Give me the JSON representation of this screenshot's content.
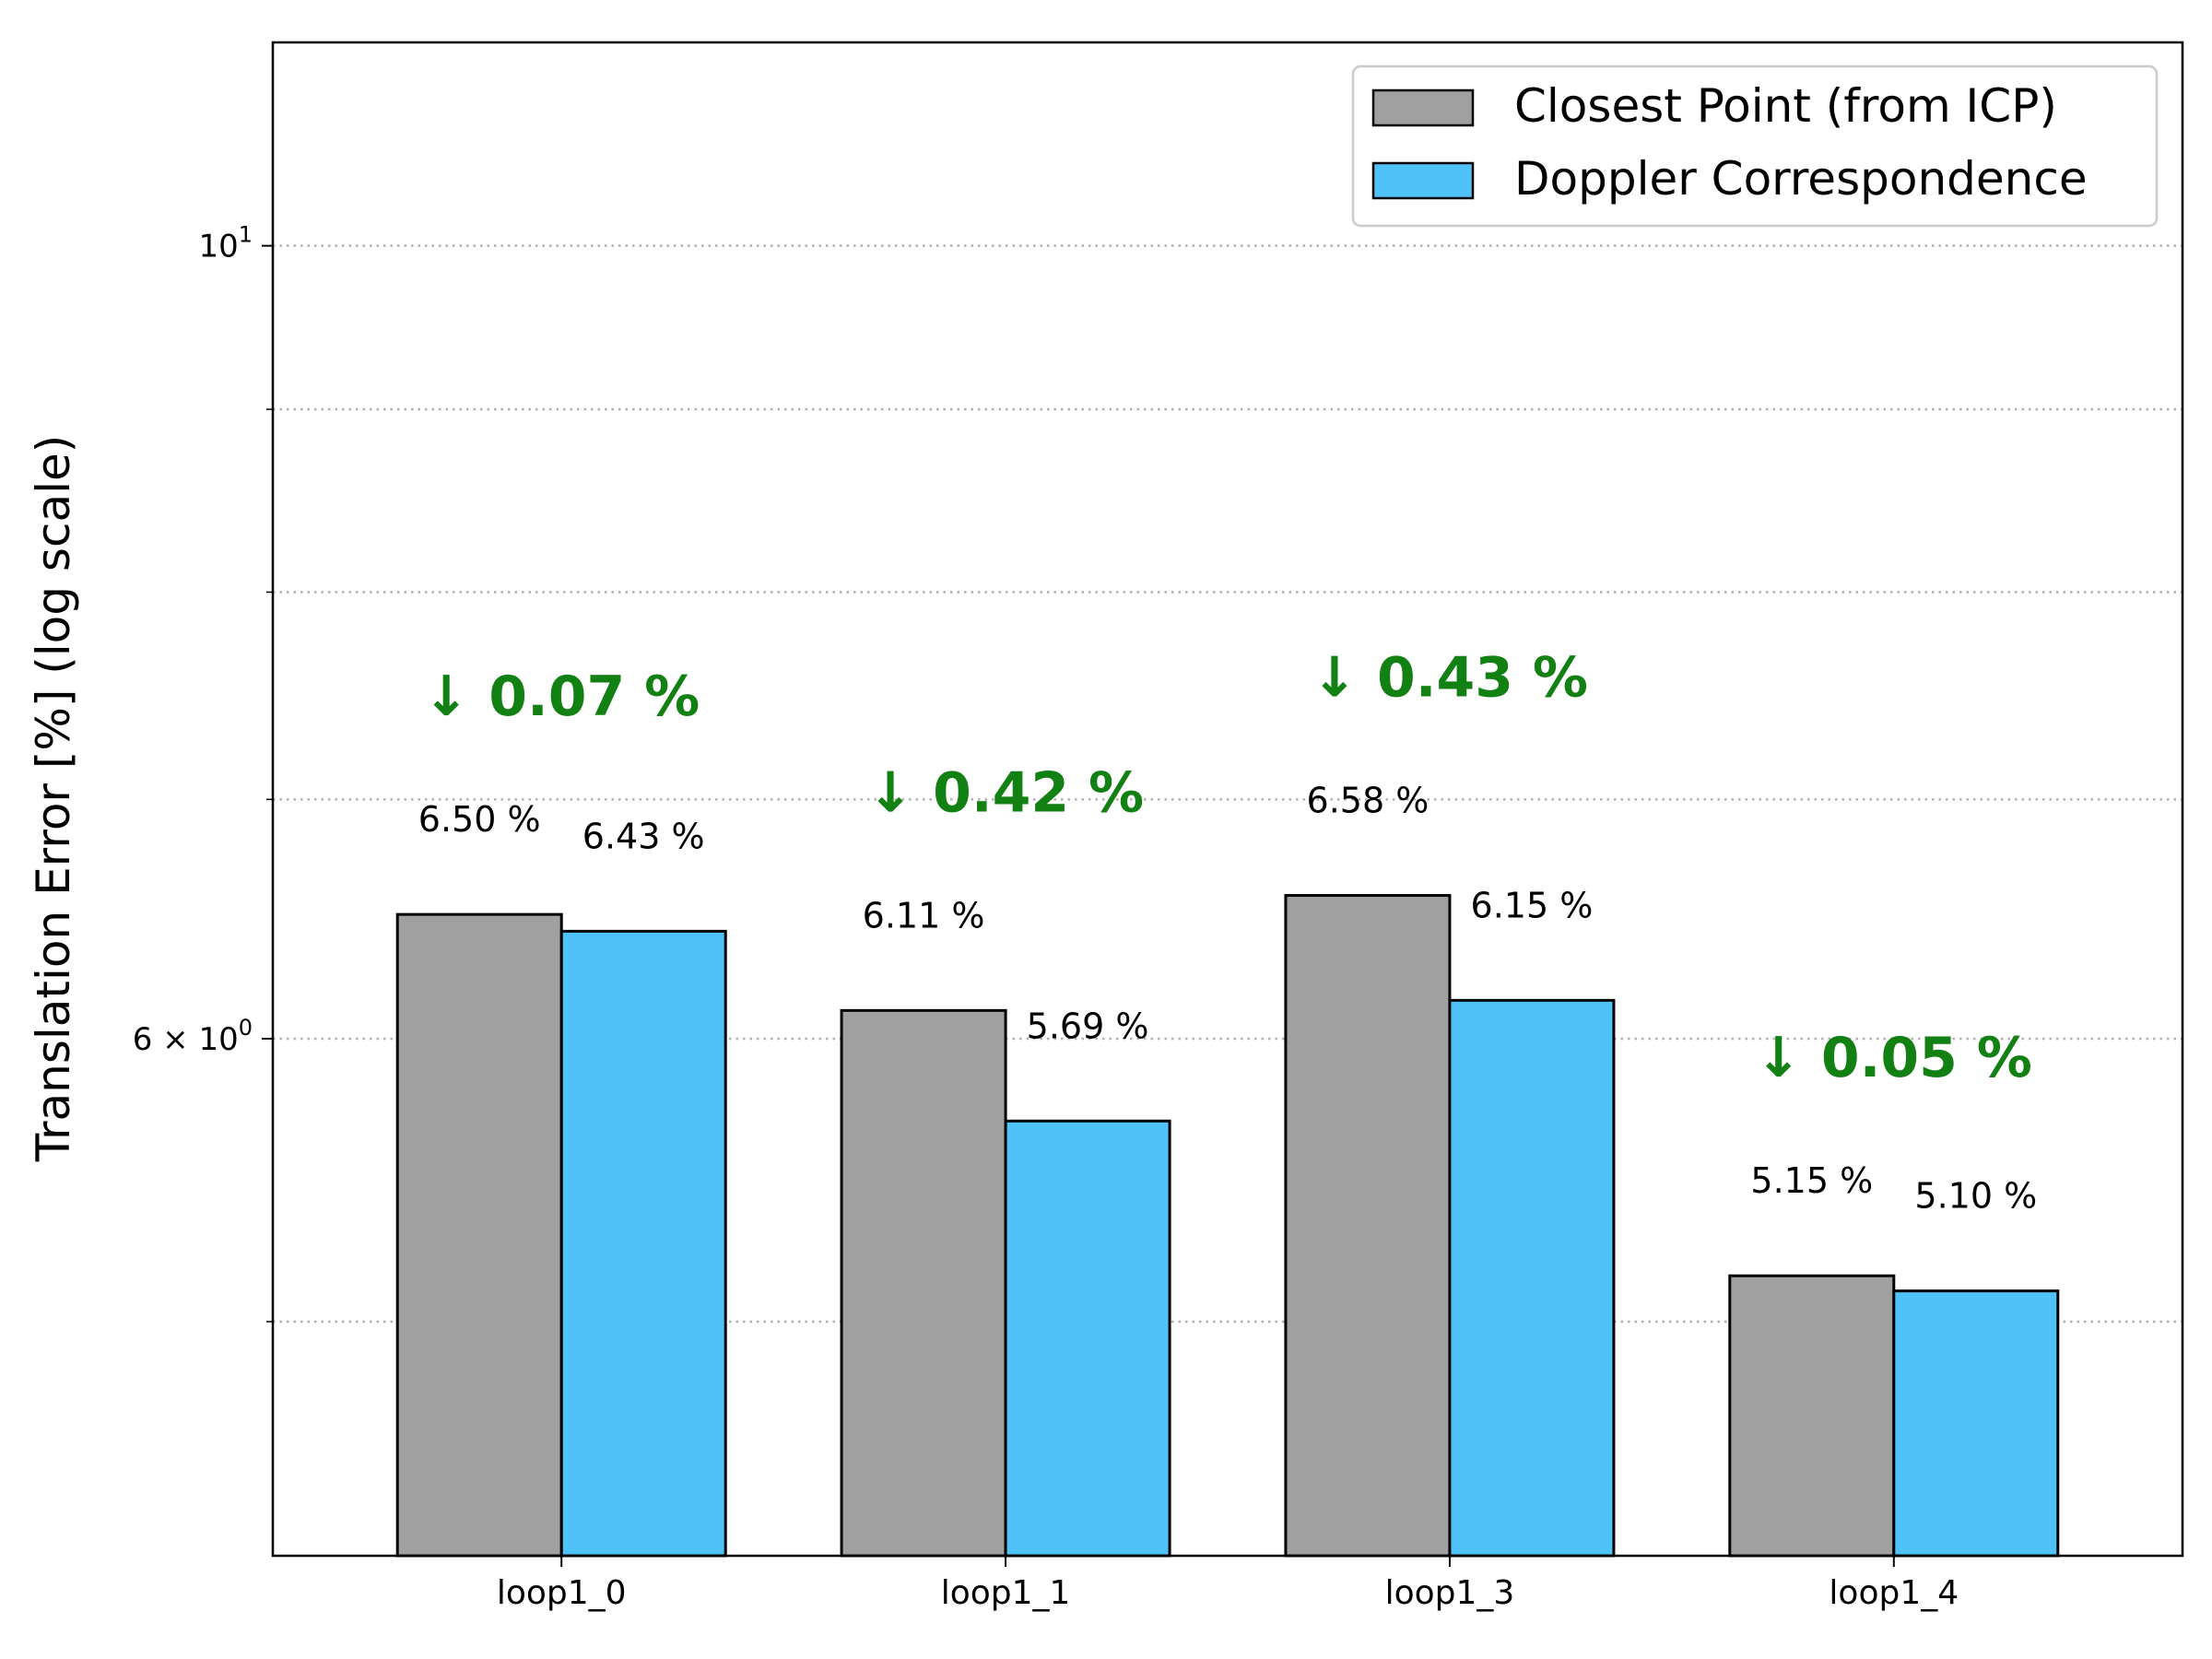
{
  "chart_data": {
    "type": "bar",
    "xlabel": "",
    "ylabel": "Translation Error [%] (log scale)",
    "yscale": "log",
    "ylim": [
      4.3,
      11.4
    ],
    "grid": "y-dotted",
    "categories": [
      "loop1_0",
      "loop1_1",
      "loop1_3",
      "loop1_4"
    ],
    "series": [
      {
        "name": "Closest Point (from ICP)",
        "values": [
          6.5,
          6.11,
          6.58,
          5.15
        ],
        "color": "#a0a0a0",
        "labels": [
          "6.50 %",
          "6.11 %",
          "6.58 %",
          "5.15 %"
        ]
      },
      {
        "name": "Doppler Correspondence",
        "values": [
          6.43,
          5.69,
          6.15,
          5.1
        ],
        "color": "#4fc3f7",
        "labels": [
          "6.43 %",
          "5.69 %",
          "6.15 %",
          "5.10 %"
        ]
      }
    ],
    "improvements": [
      "↓ 0.07 %",
      "↓ 0.42 %",
      "↓ 0.43 %",
      "↓ 0.05 %"
    ],
    "improvement_color": "#138013",
    "y_tick_labels": [
      {
        "value": 10,
        "base": "10",
        "exp": "1"
      },
      {
        "value": 6,
        "base": "6 × 10",
        "exp": "0"
      }
    ],
    "y_minor_ticks": [
      5,
      7,
      8,
      9
    ],
    "legend": "top-right"
  }
}
